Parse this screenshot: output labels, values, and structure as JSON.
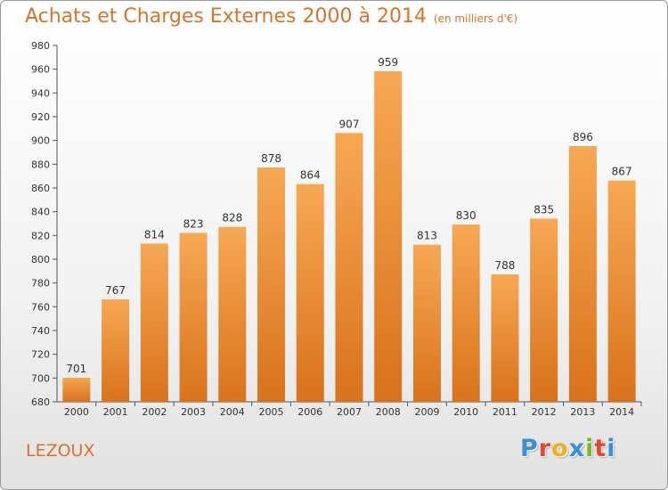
{
  "header": {
    "title": "Achats et Charges Externes 2000 à 2014",
    "subtitle": "(en milliers d'€)"
  },
  "footer": {
    "place": "LEZOUX",
    "logo_text": "Proxiti",
    "logo_colors": [
      "#3a8fd9",
      "#e8472b",
      "#f2b01e",
      "#3a8fd9",
      "#7bb52e",
      "#e8472b",
      "#3a8fd9"
    ]
  },
  "colors": {
    "accent": "#d9722a",
    "bar_light": "#f7a855",
    "bar_dark": "#d9721c",
    "axis": "#555555",
    "grid": "#ffffff"
  },
  "chart_data": {
    "type": "bar",
    "categories": [
      "2000",
      "2001",
      "2002",
      "2003",
      "2004",
      "2005",
      "2006",
      "2007",
      "2008",
      "2009",
      "2010",
      "2011",
      "2012",
      "2013",
      "2014"
    ],
    "values": [
      701,
      767,
      814,
      823,
      828,
      878,
      864,
      907,
      959,
      813,
      830,
      788,
      835,
      896,
      867
    ],
    "title": "Achats et Charges Externes 2000 à 2014",
    "subtitle": "(en milliers d'€)",
    "xlabel": "",
    "ylabel": "",
    "ylim": [
      680,
      980
    ],
    "ytick_step": 20,
    "data_labels": true,
    "grid": false,
    "legend": "none"
  }
}
